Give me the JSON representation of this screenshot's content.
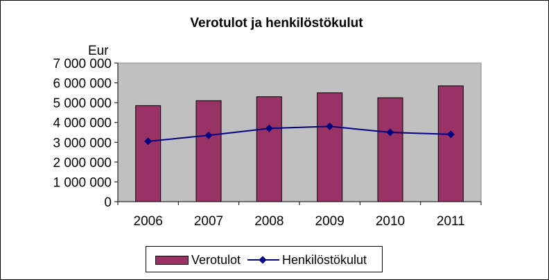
{
  "chart_data": {
    "type": "bar",
    "title": "Verotulot ja henkilöstökulut",
    "ylabel": "Eur",
    "xlabel": "",
    "categories": [
      "2006",
      "2007",
      "2008",
      "2009",
      "2010",
      "2011"
    ],
    "ylim": [
      0,
      7000000
    ],
    "yticks": [
      0,
      1000000,
      2000000,
      3000000,
      4000000,
      5000000,
      6000000,
      7000000
    ],
    "ytick_labels": [
      "0",
      "1 000 000",
      "2 000 000",
      "3 000 000",
      "4 000 000",
      "5 000 000",
      "6 000 000",
      "7 000 000"
    ],
    "grid": false,
    "legend_position": "bottom",
    "plot_background": "#c0c0c0",
    "series": [
      {
        "name": "Verotulot",
        "type": "bar",
        "color": "#993366",
        "values": [
          4850000,
          5100000,
          5300000,
          5500000,
          5250000,
          5850000
        ]
      },
      {
        "name": "Henkilöstökulut",
        "type": "line",
        "marker": "diamond",
        "color": "#000080",
        "values": [
          3050000,
          3350000,
          3700000,
          3800000,
          3500000,
          3400000
        ]
      }
    ]
  }
}
